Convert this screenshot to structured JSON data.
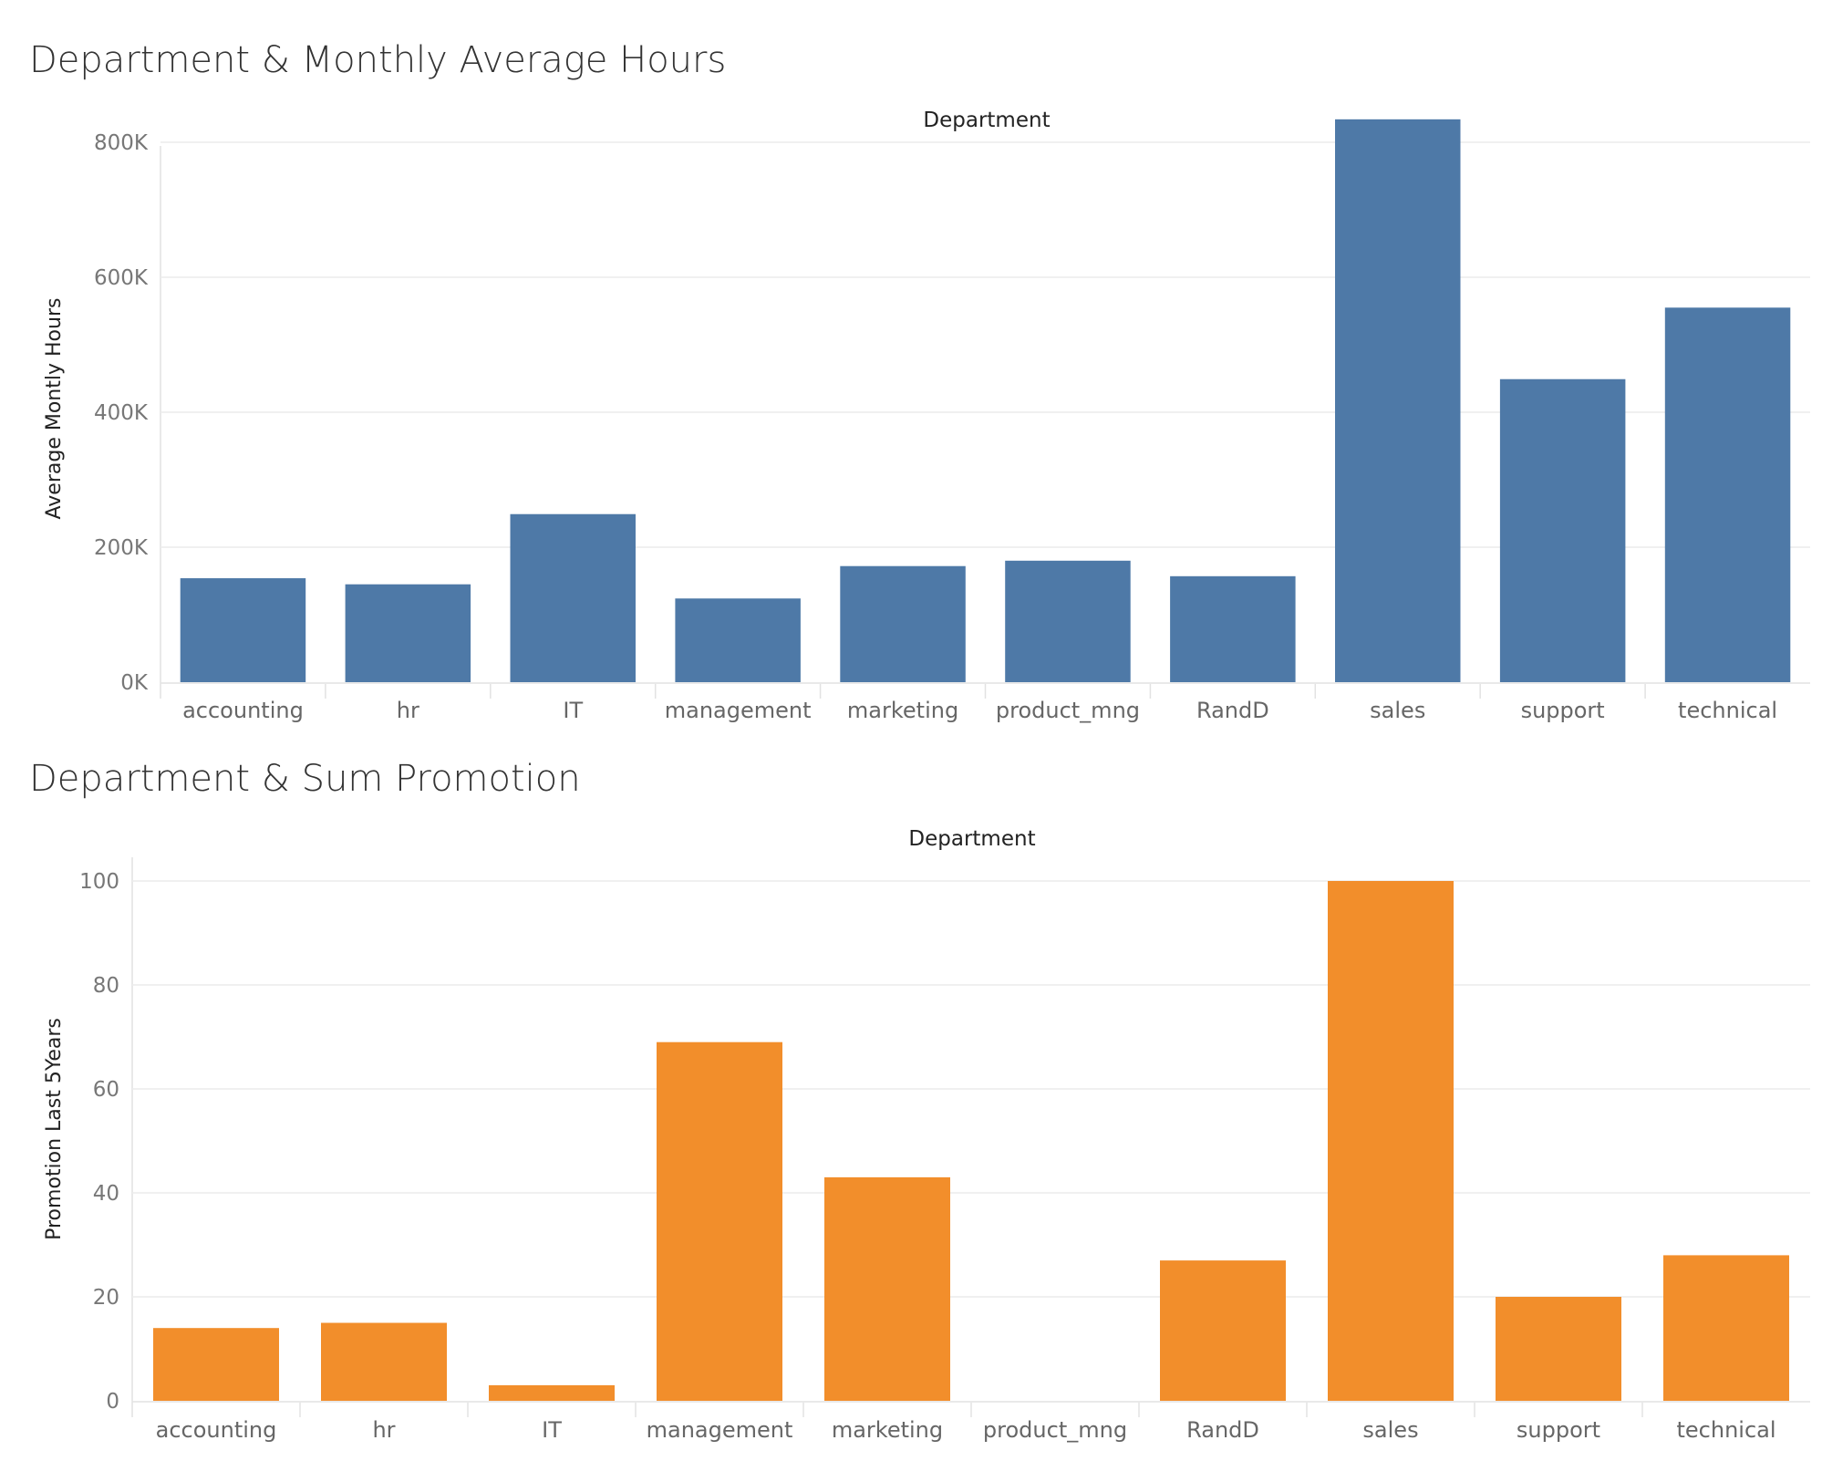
{
  "chart_data": [
    {
      "type": "bar",
      "title": "Department & Monthly Average Hours",
      "column_header": "Department",
      "ylabel": "Average Montly Hours",
      "xlabel": "",
      "categories": [
        "accounting",
        "hr",
        "IT",
        "management",
        "marketing",
        "product_mng",
        "RandD",
        "sales",
        "support",
        "technical"
      ],
      "values": [
        154000,
        145000,
        249000,
        124000,
        172000,
        180000,
        157000,
        834000,
        449000,
        555000
      ],
      "ylim": [
        0,
        900000
      ],
      "yticks": [
        0,
        200000,
        400000,
        600000,
        800000
      ],
      "ytick_labels": [
        "0K",
        "200K",
        "400K",
        "600K",
        "800K"
      ],
      "color": "#4e79a7",
      "grid": true,
      "legend": "none"
    },
    {
      "type": "bar",
      "title": "Department & Sum Promotion",
      "column_header": "Department",
      "ylabel": "Promotion Last 5Years",
      "xlabel": "",
      "categories": [
        "accounting",
        "hr",
        "IT",
        "management",
        "marketing",
        "product_mng",
        "RandD",
        "sales",
        "support",
        "technical"
      ],
      "values": [
        14,
        15,
        3,
        69,
        43,
        0,
        27,
        100,
        20,
        28
      ],
      "ylim": [
        0,
        105
      ],
      "yticks": [
        0,
        20,
        40,
        60,
        80,
        100
      ],
      "ytick_labels": [
        "0",
        "20",
        "40",
        "60",
        "80",
        "100"
      ],
      "color": "#f28e2b",
      "grid": true,
      "legend": "none"
    }
  ]
}
